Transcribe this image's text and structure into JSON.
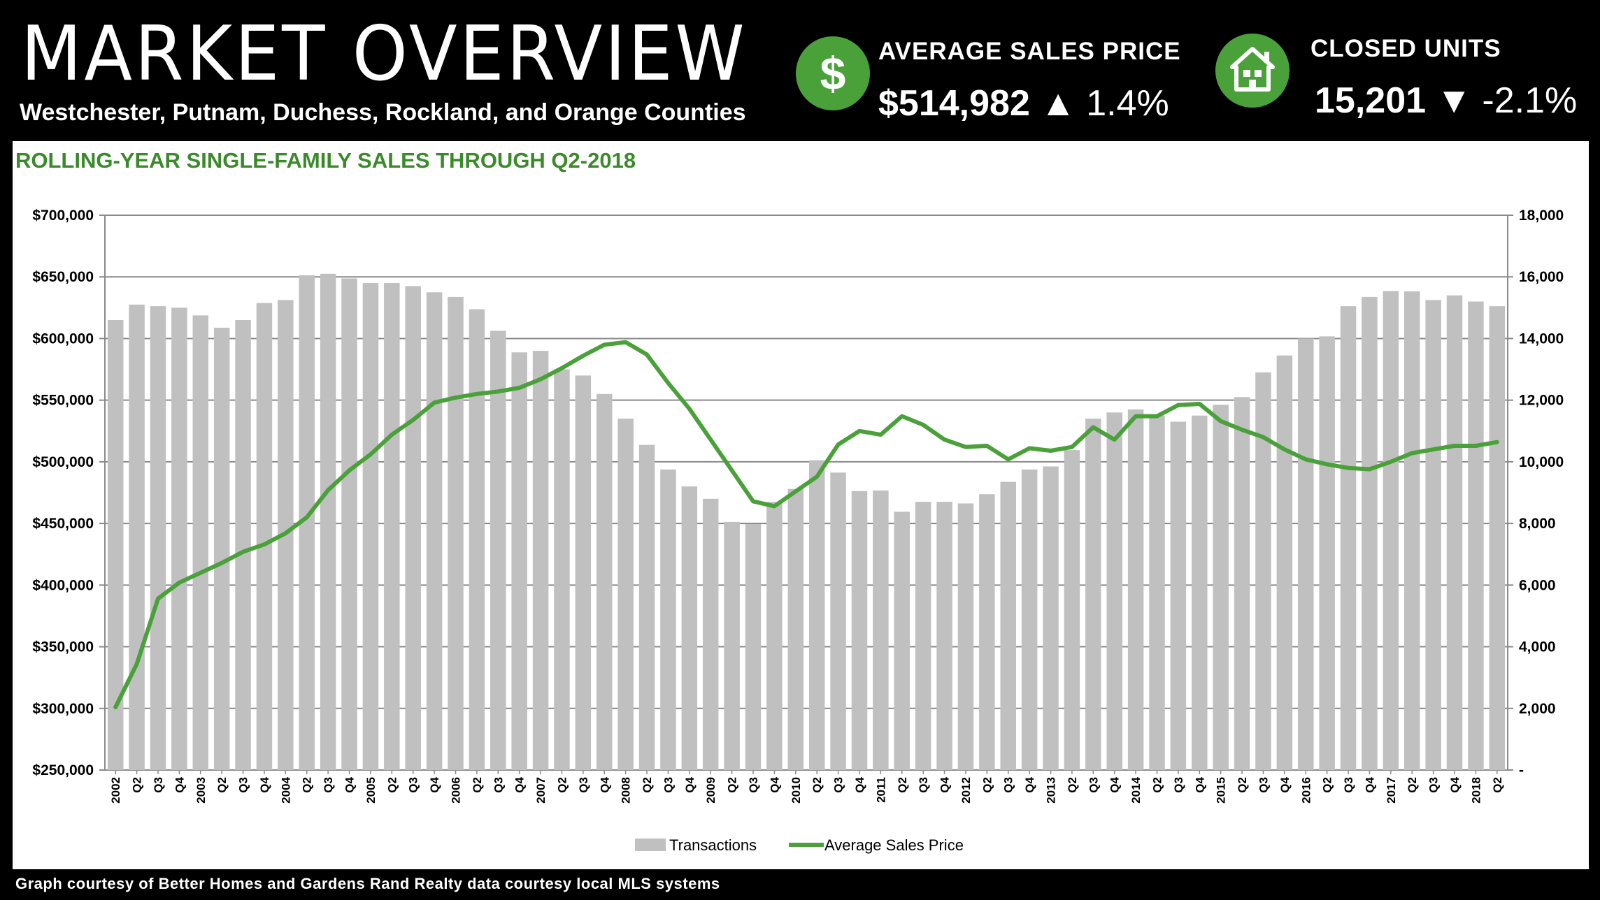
{
  "header": {
    "title": "MARKET OVERVIEW",
    "subtitle": "Westchester, Putnam, Duchess, Rockland, and Orange Counties",
    "kpis": [
      {
        "icon": "dollar-icon",
        "label": "AVERAGE SALES PRICE",
        "value": "$514,982",
        "arrow": "▲",
        "change": "1.4%"
      },
      {
        "icon": "house-icon",
        "label": "CLOSED UNITS",
        "value": "15,201",
        "arrow": "▼",
        "change": "-2.1%"
      }
    ]
  },
  "chart_title": "ROLLING-YEAR SINGLE-FAMILY SALES THROUGH Q2-2018",
  "footer": "Graph courtesy of Better Homes and Gardens Rand Realty data courtesy local MLS systems",
  "colors": {
    "accent": "#4aa13a",
    "bars": "#c0c0c0",
    "title_green": "#3a8a2a"
  },
  "chart_data": {
    "type": "bar+line",
    "categories": [
      "2002",
      "Q2",
      "Q3",
      "Q4",
      "2003",
      "Q2",
      "Q3",
      "Q4",
      "2004",
      "Q2",
      "Q3",
      "Q4",
      "2005",
      "Q2",
      "Q3",
      "Q4",
      "2006",
      "Q2",
      "Q3",
      "Q4",
      "2007",
      "Q2",
      "Q3",
      "Q4",
      "2008",
      "Q2",
      "Q3",
      "Q4",
      "2009",
      "Q2",
      "Q3",
      "Q4",
      "2010",
      "Q2",
      "Q3",
      "Q4",
      "2011",
      "Q2",
      "Q3",
      "Q4",
      "2012",
      "Q2",
      "Q3",
      "Q4",
      "2013",
      "Q2",
      "Q3",
      "Q4",
      "2014",
      "Q2",
      "Q3",
      "Q4",
      "2015",
      "Q2",
      "Q3",
      "Q4",
      "2016",
      "Q2",
      "Q3",
      "Q4",
      "2017",
      "Q2",
      "Q3",
      "Q4",
      "2018",
      "Q2"
    ],
    "y_left": {
      "min": 250000,
      "max": 700000,
      "ticks": [
        "$700,000",
        "$650,000",
        "$600,000",
        "$550,000",
        "$500,000",
        "$450,000",
        "$400,000",
        "$350,000",
        "$300,000",
        "$250,000"
      ]
    },
    "y_right": {
      "min": 0,
      "max": 18000,
      "ticks": [
        "18,000",
        "16,000",
        "14,000",
        "12,000",
        "10,000",
        "8,000",
        "6,000",
        "4,000",
        "2,000",
        "-"
      ]
    },
    "grid": true,
    "legend_position": "bottom",
    "series": [
      {
        "name": "Transactions",
        "type": "bar",
        "axis": "right",
        "values": [
          14600,
          15100,
          15050,
          15000,
          14750,
          14350,
          14600,
          15150,
          15250,
          16050,
          16100,
          15950,
          15800,
          15800,
          15700,
          15500,
          15350,
          14950,
          14250,
          13550,
          13600,
          13000,
          12800,
          12200,
          11400,
          10550,
          9750,
          9200,
          8800,
          8050,
          7980,
          8700,
          9120,
          10050,
          9650,
          9050,
          9070,
          8380,
          8700,
          8700,
          8650,
          8950,
          9350,
          9750,
          9850,
          10380,
          11400,
          11600,
          11700,
          11500,
          11300,
          11500,
          11850,
          12100,
          12900,
          13450,
          14000,
          14070,
          15050,
          15350,
          15540,
          15530,
          15250,
          15400,
          15200,
          15050
        ]
      },
      {
        "name": "Average Sales Price",
        "type": "line",
        "axis": "left",
        "values": [
          301000,
          336000,
          389000,
          402000,
          410000,
          418000,
          427000,
          433000,
          442000,
          455000,
          477000,
          493000,
          506000,
          522000,
          534000,
          548000,
          552000,
          555000,
          557000,
          560000,
          567000,
          576000,
          586000,
          595000,
          597000,
          587000,
          564000,
          543000,
          518000,
          493000,
          468000,
          464000,
          476000,
          488000,
          514000,
          525000,
          522000,
          537000,
          530000,
          518000,
          512000,
          513000,
          502000,
          511000,
          509000,
          512000,
          528000,
          518000,
          537000,
          537000,
          546000,
          547000,
          533000,
          526000,
          520000,
          510000,
          502000,
          498000,
          495000,
          494000,
          500000,
          507000,
          510000,
          513000,
          513000,
          516000
        ]
      }
    ]
  }
}
